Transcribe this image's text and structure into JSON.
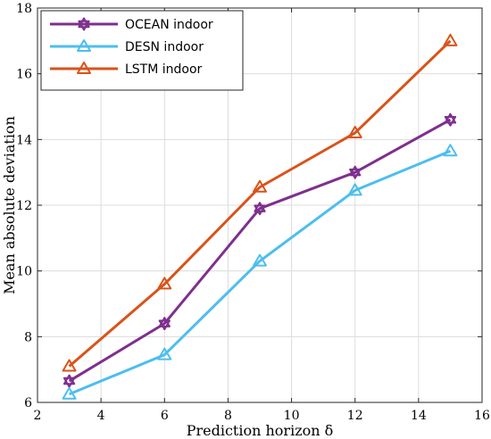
{
  "chart_data": {
    "type": "line",
    "xlabel": "Prediction horizon δ",
    "ylabel": "Mean absolute deviation",
    "xlim": [
      2,
      16
    ],
    "ylim": [
      6,
      18
    ],
    "xticks": [
      2,
      4,
      6,
      8,
      10,
      12,
      14,
      16
    ],
    "yticks": [
      6,
      8,
      10,
      12,
      14,
      16,
      18
    ],
    "grid": true,
    "legend_position": "top-left",
    "x": [
      3,
      6,
      9,
      12,
      15
    ],
    "series": [
      {
        "name": "OCEAN indoor",
        "values": [
          6.65,
          8.4,
          11.9,
          13.0,
          14.6
        ],
        "color": "#7e2f8e",
        "marker": "hexagram"
      },
      {
        "name": "DESN indoor",
        "values": [
          6.25,
          7.45,
          10.3,
          12.45,
          13.65
        ],
        "color": "#4dbeee",
        "marker": "triangle"
      },
      {
        "name": "LSTM indoor",
        "values": [
          7.1,
          9.6,
          12.55,
          14.2,
          17.0
        ],
        "color": "#d95319",
        "marker": "triangle"
      }
    ]
  }
}
